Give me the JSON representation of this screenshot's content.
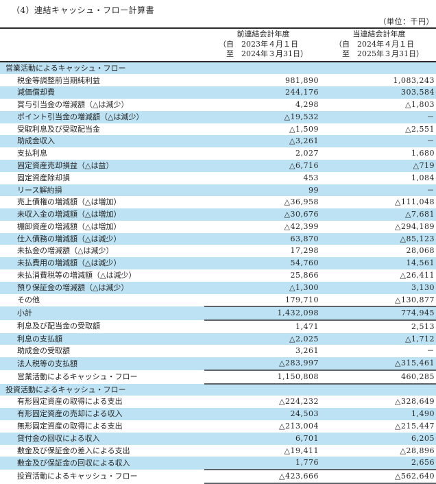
{
  "page": {
    "title": "（4）連結キャッシュ・フロー計算書",
    "unit_label": "（単位：千円）"
  },
  "colors": {
    "row_shade": "#bde2f3",
    "frame_border": "#2b2b2b",
    "subtotal_rule": "#5d6368",
    "text": "#262626"
  },
  "table": {
    "columns": [
      {
        "title": "前連結会計年度",
        "period_from": "（自　2023年４月１日",
        "period_to": "　至　2024年３月31日）"
      },
      {
        "title": "当連結会計年度",
        "period_from": "（自　2024年４月１日",
        "period_to": "　至　2025年３月31日）"
      }
    ],
    "rows": [
      {
        "label": "営業活動によるキャッシュ・フロー",
        "prev": "",
        "curr": "",
        "type": "section",
        "shaded": true
      },
      {
        "label": "税金等調整前当期純利益",
        "prev": "981,890",
        "curr": "1,083,243",
        "type": "item",
        "shaded": false
      },
      {
        "label": "減価償却費",
        "prev": "244,176",
        "curr": "303,584",
        "type": "item",
        "shaded": true
      },
      {
        "label": "賞与引当金の増減額（△は減少）",
        "prev": "4,298",
        "curr": "△1,803",
        "type": "item",
        "shaded": false
      },
      {
        "label": "ポイント引当金の増減額（△は減少）",
        "prev": "△19,532",
        "curr": "－",
        "type": "item",
        "shaded": true
      },
      {
        "label": "受取利息及び受取配当金",
        "prev": "△1,509",
        "curr": "△2,551",
        "type": "item",
        "shaded": false
      },
      {
        "label": "助成金収入",
        "prev": "△3,261",
        "curr": "－",
        "type": "item",
        "shaded": true
      },
      {
        "label": "支払利息",
        "prev": "2,027",
        "curr": "1,680",
        "type": "item",
        "shaded": false
      },
      {
        "label": "固定資産売却損益（△は益）",
        "prev": "△6,716",
        "curr": "△719",
        "type": "item",
        "shaded": true
      },
      {
        "label": "固定資産除却損",
        "prev": "453",
        "curr": "1,084",
        "type": "item",
        "shaded": false
      },
      {
        "label": "リース解約損",
        "prev": "99",
        "curr": "－",
        "type": "item",
        "shaded": true
      },
      {
        "label": "売上債権の増減額（△は増加）",
        "prev": "△36,958",
        "curr": "△111,048",
        "type": "item",
        "shaded": false
      },
      {
        "label": "未収入金の増減額（△は増加）",
        "prev": "△30,676",
        "curr": "△7,681",
        "type": "item",
        "shaded": true
      },
      {
        "label": "棚卸資産の増減額（△は増加）",
        "prev": "△42,399",
        "curr": "△294,189",
        "type": "item",
        "shaded": false
      },
      {
        "label": "仕入債務の増減額（△は減少）",
        "prev": "63,870",
        "curr": "△85,123",
        "type": "item",
        "shaded": true
      },
      {
        "label": "未払金の増減額（△は減少）",
        "prev": "17,298",
        "curr": "28,068",
        "type": "item",
        "shaded": false
      },
      {
        "label": "未払費用の増減額（△は減少）",
        "prev": "54,760",
        "curr": "14,561",
        "type": "item",
        "shaded": true
      },
      {
        "label": "未払消費税等の増減額（△は減少）",
        "prev": "25,866",
        "curr": "△26,411",
        "type": "item",
        "shaded": false
      },
      {
        "label": "預り保証金の増減額（△は減少）",
        "prev": "△1,300",
        "curr": "3,130",
        "type": "item",
        "shaded": true
      },
      {
        "label": "その他",
        "prev": "179,710",
        "curr": "△130,877",
        "type": "item",
        "shaded": false
      },
      {
        "label": "小計",
        "prev": "1,432,098",
        "curr": "774,945",
        "type": "subtotal",
        "shaded": true
      },
      {
        "label": "利息及び配当金の受取額",
        "prev": "1,471",
        "curr": "2,513",
        "type": "item",
        "shaded": false
      },
      {
        "label": "利息の支払額",
        "prev": "△2,025",
        "curr": "△1,712",
        "type": "item",
        "shaded": true
      },
      {
        "label": "助成金の受取額",
        "prev": "3,261",
        "curr": "－",
        "type": "item",
        "shaded": false
      },
      {
        "label": "法人税等の支払額",
        "prev": "△283,997",
        "curr": "△315,461",
        "type": "item",
        "shaded": true
      },
      {
        "label": "営業活動によるキャッシュ・フロー",
        "prev": "1,150,808",
        "curr": "460,285",
        "type": "total",
        "shaded": false
      },
      {
        "label": "投資活動によるキャッシュ・フロー",
        "prev": "",
        "curr": "",
        "type": "section",
        "shaded": true
      },
      {
        "label": "有形固定資産の取得による支出",
        "prev": "△224,232",
        "curr": "△328,649",
        "type": "item",
        "shaded": false
      },
      {
        "label": "有形固定資産の売却による収入",
        "prev": "24,503",
        "curr": "1,490",
        "type": "item",
        "shaded": true
      },
      {
        "label": "無形固定資産の取得による支出",
        "prev": "△213,004",
        "curr": "△215,447",
        "type": "item",
        "shaded": false
      },
      {
        "label": "貸付金の回収による収入",
        "prev": "6,701",
        "curr": "6,205",
        "type": "item",
        "shaded": true
      },
      {
        "label": "敷金及び保証金の差入による支出",
        "prev": "△19,411",
        "curr": "△28,896",
        "type": "item",
        "shaded": false
      },
      {
        "label": "敷金及び保証金の回収による収入",
        "prev": "1,776",
        "curr": "2,656",
        "type": "item",
        "shaded": true
      },
      {
        "label": "投資活動によるキャッシュ・フロー",
        "prev": "△423,666",
        "curr": "△562,640",
        "type": "total",
        "shaded": false
      }
    ]
  }
}
